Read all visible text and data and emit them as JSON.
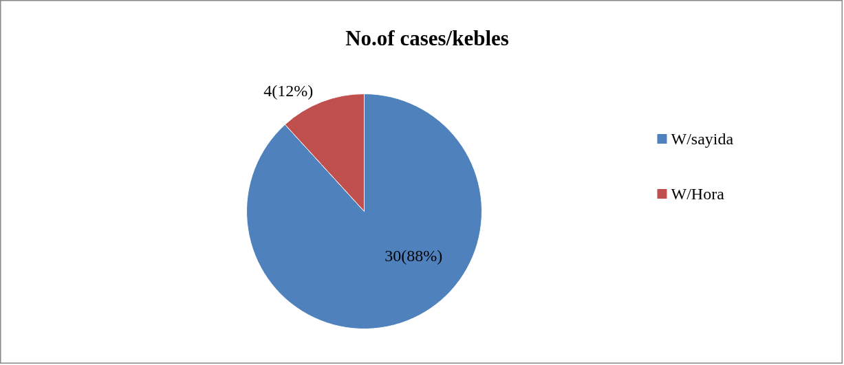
{
  "chart_data": {
    "type": "pie",
    "title": "No.of cases/kebles",
    "categories": [
      "W/sayida",
      "W/Hora"
    ],
    "values": [
      30,
      4
    ],
    "colors": [
      "#4f81bd",
      "#c0504d"
    ],
    "value_labels": [
      "30(88%)",
      "4(12%)"
    ],
    "legend": "right"
  }
}
